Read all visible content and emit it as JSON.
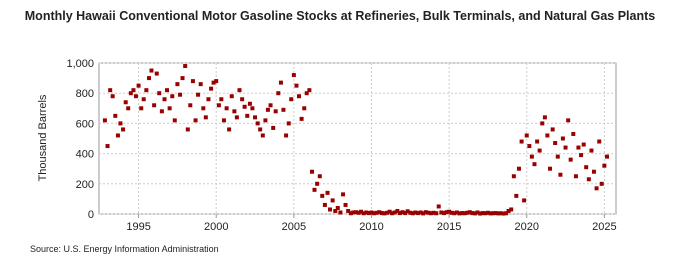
{
  "chart_data": {
    "type": "scatter",
    "title": "Monthly Hawaii Conventional Motor Gasoline Stocks at Refineries, Bulk Terminals, and Natural Gas Plants",
    "y_label": "Thousand Barrels",
    "source": "Source: U.S. Energy Information Administration",
    "grid": true,
    "xlim": [
      1992.45,
      2025.75
    ],
    "ylim": [
      0,
      1000
    ],
    "xticks": [
      1995,
      2000,
      2005,
      2010,
      2015,
      2020,
      2025
    ],
    "yticks": [
      0,
      200,
      400,
      600,
      800,
      {
        "value": 1000,
        "label": "1,000"
      }
    ],
    "series": [
      {
        "color": "#990000",
        "x": [
          1992.83,
          1993.0,
          1993.17,
          1993.33,
          1993.5,
          1993.67,
          1993.83,
          1994.0,
          1994.17,
          1994.33,
          1994.5,
          1994.67,
          1994.83,
          1995.0,
          1995.17,
          1995.33,
          1995.5,
          1995.67,
          1995.83,
          1996.0,
          1996.17,
          1996.33,
          1996.5,
          1996.67,
          1996.83,
          1997.0,
          1997.17,
          1997.33,
          1997.5,
          1997.67,
          1997.83,
          1998.0,
          1998.17,
          1998.33,
          1998.5,
          1998.67,
          1998.83,
          1999.0,
          1999.17,
          1999.33,
          1999.5,
          1999.67,
          1999.83,
          2000.0,
          2000.17,
          2000.33,
          2000.5,
          2000.67,
          2000.83,
          2001.0,
          2001.17,
          2001.33,
          2001.5,
          2001.67,
          2001.83,
          2002.0,
          2002.17,
          2002.33,
          2002.5,
          2002.67,
          2002.83,
          2003.0,
          2003.17,
          2003.33,
          2003.5,
          2003.67,
          2003.83,
          2004.0,
          2004.17,
          2004.33,
          2004.5,
          2004.67,
          2004.83,
          2005.0,
          2005.17,
          2005.33,
          2005.5,
          2005.67,
          2005.83,
          2006.0,
          2006.17,
          2006.33,
          2006.5,
          2006.67,
          2006.83,
          2007.0,
          2007.17,
          2007.33,
          2007.5,
          2007.67,
          2007.83,
          2008.0,
          2008.17,
          2008.33,
          2008.5,
          2008.67,
          2008.83,
          2009.0,
          2009.17,
          2009.33,
          2009.5,
          2009.67,
          2009.83,
          2010.0,
          2010.17,
          2010.33,
          2010.5,
          2010.67,
          2010.83,
          2011.0,
          2011.17,
          2011.33,
          2011.5,
          2011.67,
          2011.83,
          2012.0,
          2012.17,
          2012.33,
          2012.5,
          2012.67,
          2012.83,
          2013.0,
          2013.17,
          2013.33,
          2013.5,
          2013.67,
          2013.83,
          2014.0,
          2014.17,
          2014.33,
          2014.5,
          2014.67,
          2014.83,
          2015.0,
          2015.17,
          2015.33,
          2015.5,
          2015.67,
          2015.83,
          2016.0,
          2016.17,
          2016.33,
          2016.5,
          2016.67,
          2016.83,
          2017.0,
          2017.17,
          2017.33,
          2017.5,
          2017.67,
          2017.83,
          2018.0,
          2018.17,
          2018.33,
          2018.5,
          2018.67,
          2018.83,
          2019.0,
          2019.17,
          2019.33,
          2019.5,
          2019.67,
          2019.83,
          2020.0,
          2020.17,
          2020.33,
          2020.5,
          2020.67,
          2020.83,
          2021.0,
          2021.17,
          2021.33,
          2021.5,
          2021.67,
          2021.83,
          2022.0,
          2022.17,
          2022.33,
          2022.5,
          2022.67,
          2022.83,
          2023.0,
          2023.17,
          2023.33,
          2023.5,
          2023.67,
          2023.83,
          2024.0,
          2024.17,
          2024.33,
          2024.5,
          2024.67,
          2024.83,
          2025.0,
          2025.17
        ],
        "values": [
          620,
          450,
          820,
          780,
          650,
          520,
          600,
          560,
          740,
          700,
          800,
          820,
          780,
          850,
          700,
          760,
          820,
          900,
          950,
          720,
          930,
          800,
          680,
          760,
          820,
          700,
          780,
          620,
          860,
          790,
          900,
          980,
          560,
          720,
          880,
          620,
          790,
          860,
          700,
          640,
          760,
          830,
          870,
          880,
          720,
          760,
          620,
          700,
          560,
          780,
          680,
          640,
          820,
          760,
          710,
          650,
          730,
          700,
          640,
          600,
          560,
          520,
          620,
          690,
          720,
          570,
          680,
          800,
          870,
          690,
          520,
          600,
          760,
          920,
          850,
          780,
          630,
          700,
          800,
          820,
          280,
          160,
          200,
          250,
          120,
          60,
          140,
          30,
          90,
          20,
          40,
          10,
          130,
          60,
          20,
          5,
          10,
          12,
          8,
          15,
          5,
          10,
          6,
          10,
          5,
          8,
          12,
          6,
          4,
          8,
          15,
          5,
          10,
          20,
          6,
          12,
          6,
          18,
          8,
          5,
          10,
          6,
          10,
          4,
          12,
          8,
          5,
          8,
          5,
          50,
          10,
          6,
          12,
          15,
          8,
          5,
          10,
          4,
          6,
          5,
          8,
          12,
          6,
          4,
          10,
          3,
          6,
          5,
          8,
          4,
          5,
          6,
          4,
          5,
          3,
          5,
          20,
          30,
          250,
          120,
          300,
          480,
          90,
          520,
          450,
          380,
          330,
          480,
          420,
          600,
          640,
          520,
          300,
          560,
          470,
          380,
          260,
          500,
          440,
          620,
          360,
          530,
          250,
          440,
          390,
          460,
          310,
          230,
          420,
          280,
          170,
          480,
          200,
          320,
          380
        ]
      }
    ]
  }
}
